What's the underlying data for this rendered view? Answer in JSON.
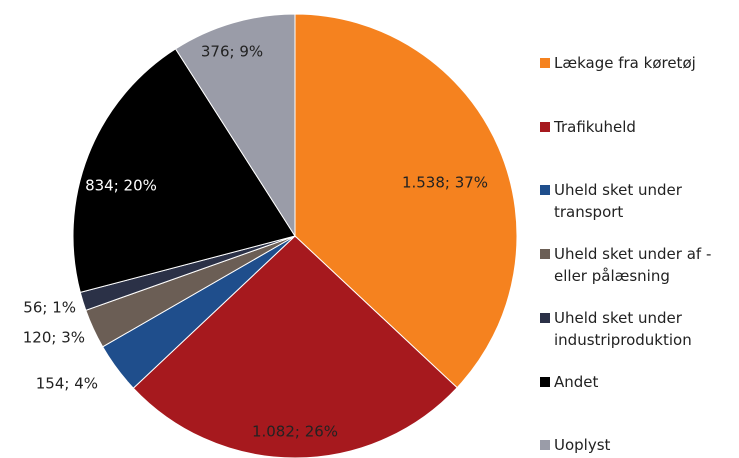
{
  "chart_data": {
    "type": "pie",
    "categories": [
      "Lækage fra køretøj",
      "Trafikuheld",
      "Uheld sket under transport",
      "Uheld sket under af - eller pålæsning",
      "Uheld sket under industriproduktion",
      "Andet",
      "Uoplyst"
    ],
    "values": [
      1538,
      1082,
      154,
      120,
      56,
      834,
      376
    ],
    "value_labels": [
      "1.538; 37%",
      "1.082; 26%",
      "154; 4%",
      "120; 3%",
      "56; 1%",
      "834; 20%",
      "376; 9%"
    ],
    "colors": [
      "#f5821f",
      "#a6191e",
      "#1f4e8c",
      "#6b5e55",
      "#2b3147",
      "#000000",
      "#9a9ca8"
    ],
    "legend": "right"
  }
}
